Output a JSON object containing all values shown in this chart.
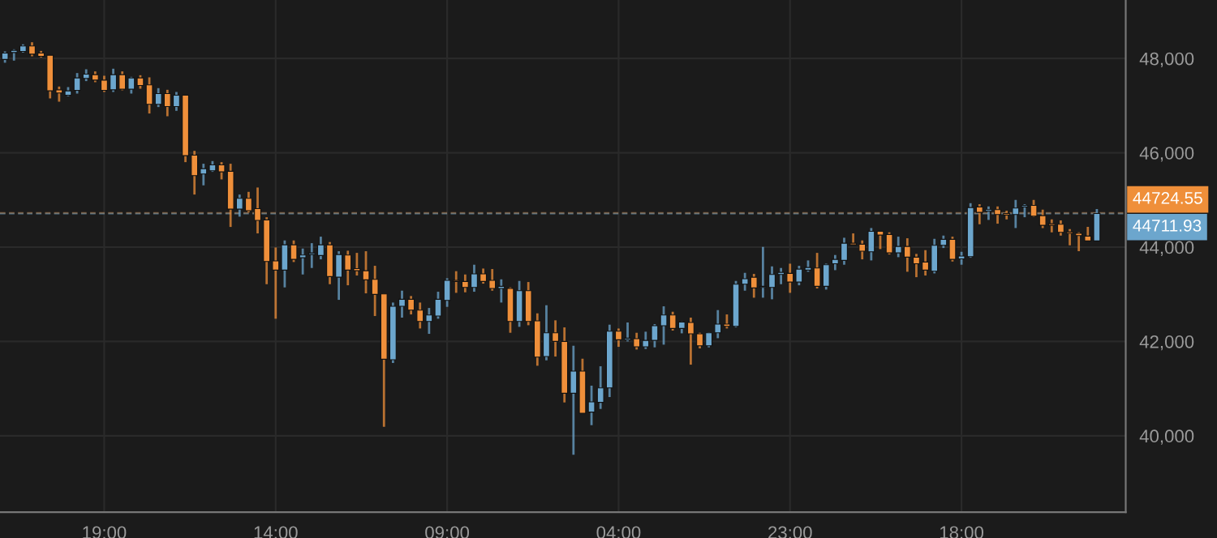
{
  "chart_data": {
    "type": "candlestick",
    "categories": [
      null,
      null,
      null,
      null,
      null,
      null,
      null,
      null,
      null,
      null,
      null,
      "19:00",
      null,
      null,
      null,
      null,
      null,
      null,
      null,
      null,
      null,
      null,
      null,
      null,
      null,
      null,
      null,
      null,
      null,
      null,
      "14:00",
      null,
      null,
      null,
      null,
      null,
      null,
      null,
      null,
      null,
      null,
      null,
      null,
      null,
      null,
      null,
      null,
      null,
      null,
      "09:00",
      null,
      null,
      null,
      null,
      null,
      null,
      null,
      null,
      null,
      null,
      null,
      null,
      null,
      null,
      null,
      null,
      null,
      null,
      "04:00",
      null,
      null,
      null,
      null,
      null,
      null,
      null,
      null,
      null,
      null,
      null,
      null,
      null,
      null,
      null,
      null,
      null,
      null,
      "23:00",
      null,
      null,
      null,
      null,
      null,
      null,
      null,
      null,
      null,
      null,
      null,
      null,
      null,
      null,
      null,
      null,
      null,
      null,
      "18:00",
      null,
      null,
      null,
      null,
      null,
      null,
      null,
      null,
      null,
      null,
      null,
      null,
      null,
      null,
      null
    ],
    "ohlc": [
      [
        47980,
        48150,
        47910,
        48115
      ],
      [
        48126,
        48195,
        47955,
        48172
      ],
      [
        48150,
        48300,
        48126,
        48264
      ],
      [
        48264,
        48344,
        48046,
        48092
      ],
      [
        48115,
        48160,
        48023,
        48046
      ],
      [
        48069,
        48069,
        47153,
        47313
      ],
      [
        47336,
        47405,
        47084,
        47268
      ],
      [
        47222,
        47393,
        47199,
        47313
      ],
      [
        47325,
        47691,
        47256,
        47588
      ],
      [
        47577,
        47771,
        47520,
        47668
      ],
      [
        47657,
        47726,
        47497,
        47542
      ],
      [
        47542,
        47634,
        47290,
        47325
      ],
      [
        47336,
        47783,
        47290,
        47657
      ],
      [
        47657,
        47726,
        47325,
        47348
      ],
      [
        47348,
        47611,
        47256,
        47588
      ],
      [
        47588,
        47645,
        47359,
        47428
      ],
      [
        47440,
        47600,
        46833,
        47027
      ],
      [
        47027,
        47371,
        46970,
        47256
      ],
      [
        47256,
        47336,
        46775,
        46981
      ],
      [
        46981,
        47290,
        46890,
        47222
      ],
      [
        47222,
        47222,
        45802,
        45940
      ],
      [
        45951,
        46042,
        45115,
        45516
      ],
      [
        45551,
        45768,
        45310,
        45665
      ],
      [
        45619,
        45825,
        45596,
        45745
      ],
      [
        45745,
        45802,
        45436,
        45596
      ],
      [
        45608,
        45768,
        44428,
        44806
      ],
      [
        44806,
        45115,
        44646,
        45035
      ],
      [
        45035,
        45172,
        44737,
        44772
      ],
      [
        44817,
        45264,
        44291,
        44566
      ],
      [
        44577,
        44634,
        43214,
        43695
      ],
      [
        43707,
        43993,
        42482,
        43512
      ],
      [
        43512,
        44142,
        43146,
        44050
      ],
      [
        44050,
        44142,
        43684,
        43741
      ],
      [
        43775,
        43970,
        43420,
        43833
      ],
      [
        43844,
        44084,
        43558,
        43878
      ],
      [
        43821,
        44222,
        43741,
        44050
      ],
      [
        44050,
        44108,
        43214,
        43375
      ],
      [
        43363,
        43913,
        42882,
        43844
      ],
      [
        43833,
        43924,
        43191,
        43512
      ],
      [
        43546,
        43878,
        43398,
        43500
      ],
      [
        43500,
        43913,
        43020,
        43306
      ],
      [
        43317,
        43604,
        42539,
        42997
      ],
      [
        43008,
        43008,
        40192,
        41623
      ],
      [
        41611,
        42825,
        41543,
        42745
      ],
      [
        42745,
        43077,
        42505,
        42894
      ],
      [
        42894,
        42963,
        42573,
        42665
      ],
      [
        42665,
        42825,
        42275,
        42424
      ],
      [
        42424,
        42710,
        42161,
        42562
      ],
      [
        42539,
        43054,
        42482,
        42894
      ],
      [
        42871,
        43340,
        42734,
        43295
      ],
      [
        43295,
        43490,
        43031,
        43272
      ],
      [
        43272,
        43420,
        43042,
        43146
      ],
      [
        43146,
        43627,
        43054,
        43432
      ],
      [
        43432,
        43546,
        43226,
        43272
      ],
      [
        43295,
        43535,
        43077,
        43123
      ],
      [
        43123,
        43317,
        42825,
        43169
      ],
      [
        43123,
        43146,
        42184,
        42424
      ],
      [
        42424,
        43283,
        42310,
        43077
      ],
      [
        43077,
        43260,
        42344,
        42424
      ],
      [
        42436,
        42596,
        41485,
        41669
      ],
      [
        41680,
        42768,
        41600,
        42184
      ],
      [
        42184,
        42448,
        41680,
        42001
      ],
      [
        42001,
        42298,
        40707,
        40901
      ],
      [
        40901,
        41909,
        39596,
        41371
      ],
      [
        41371,
        41634,
        40478,
        40478
      ],
      [
        40501,
        41062,
        40226,
        40718
      ],
      [
        40707,
        41474,
        40569,
        41016
      ],
      [
        41016,
        42356,
        40821,
        42218
      ],
      [
        42218,
        42275,
        41886,
        42035
      ],
      [
        42035,
        42402,
        42001,
        42069
      ],
      [
        42058,
        42184,
        41829,
        41886
      ],
      [
        41886,
        42207,
        41840,
        42023
      ],
      [
        42023,
        42367,
        41875,
        42333
      ],
      [
        42333,
        42745,
        41932,
        42562
      ],
      [
        42562,
        42630,
        42230,
        42275
      ],
      [
        42275,
        42424,
        42172,
        42413
      ],
      [
        42402,
        42505,
        41508,
        42161
      ],
      [
        42161,
        42184,
        41852,
        41909
      ],
      [
        41909,
        42195,
        41875,
        42184
      ],
      [
        42184,
        42665,
        42069,
        42367
      ],
      [
        42367,
        42573,
        42275,
        42321
      ],
      [
        42321,
        43283,
        42298,
        43214
      ],
      [
        43214,
        43455,
        43077,
        43329
      ],
      [
        43363,
        43432,
        42928,
        43134
      ],
      [
        43146,
        44005,
        42928,
        43169
      ],
      [
        43146,
        43592,
        42894,
        43420
      ],
      [
        43420,
        43558,
        43214,
        43466
      ],
      [
        43443,
        43649,
        43031,
        43260
      ],
      [
        43260,
        43604,
        43191,
        43535
      ],
      [
        43512,
        43718,
        43478,
        43569
      ],
      [
        43558,
        43878,
        43123,
        43169
      ],
      [
        43169,
        43649,
        43100,
        43627
      ],
      [
        43649,
        43833,
        43512,
        43741
      ],
      [
        43718,
        44199,
        43627,
        44084
      ],
      [
        44084,
        44291,
        44050,
        44050
      ],
      [
        44062,
        44142,
        43741,
        43913
      ],
      [
        43901,
        44405,
        43718,
        44336
      ],
      [
        44336,
        44336,
        43959,
        44256
      ],
      [
        44268,
        44314,
        43844,
        43878
      ],
      [
        43878,
        44222,
        43787,
        44016
      ],
      [
        44016,
        44188,
        43478,
        43787
      ],
      [
        43787,
        43856,
        43363,
        43649
      ],
      [
        43684,
        43936,
        43398,
        43512
      ],
      [
        43489,
        44176,
        43443,
        44039
      ],
      [
        44039,
        44245,
        43981,
        44165
      ],
      [
        44165,
        44222,
        43695,
        43741
      ],
      [
        43752,
        43901,
        43627,
        43810
      ],
      [
        43798,
        44932,
        43775,
        44840
      ],
      [
        44852,
        44909,
        44485,
        44737
      ],
      [
        44760,
        44863,
        44577,
        44795
      ],
      [
        44795,
        44863,
        44497,
        44691
      ],
      [
        44714,
        44772,
        44588,
        44680
      ],
      [
        44691,
        45001,
        44405,
        44829
      ],
      [
        44852,
        44909,
        44634,
        44886
      ],
      [
        44886,
        45001,
        44646,
        44657
      ],
      [
        44668,
        44795,
        44405,
        44462
      ],
      [
        44497,
        44588,
        44314,
        44462
      ],
      [
        44485,
        44565,
        44245,
        44314
      ],
      [
        44325,
        44382,
        44039,
        44291
      ],
      [
        44291,
        44314,
        43913,
        44245
      ],
      [
        44234,
        44428,
        44131,
        44131
      ],
      [
        44131,
        44806,
        44131,
        44714
      ]
    ],
    "colors": [
      "#6ca6cd",
      "#6ca6cd",
      "#6ca6cd",
      "#ef8f3a",
      "#ef8f3a",
      "#ef8f3a",
      "#ef8f3a",
      "#6ca6cd",
      "#6ca6cd",
      "#6ca6cd",
      "#ef8f3a",
      "#ef8f3a",
      "#6ca6cd",
      "#ef8f3a",
      "#6ca6cd",
      "#ef8f3a",
      "#ef8f3a",
      "#6ca6cd",
      "#ef8f3a",
      "#6ca6cd",
      "#ef8f3a",
      "#ef8f3a",
      "#6ca6cd",
      "#6ca6cd",
      "#ef8f3a",
      "#ef8f3a",
      "#6ca6cd",
      "#ef8f3a",
      "#ef8f3a",
      "#ef8f3a",
      "#ef8f3a",
      "#6ca6cd",
      "#ef8f3a",
      "#6ca6cd",
      "#6ca6cd",
      "#6ca6cd",
      "#ef8f3a",
      "#6ca6cd",
      "#ef8f3a",
      "#ef8f3a",
      "#ef8f3a",
      "#ef8f3a",
      "#ef8f3a",
      "#6ca6cd",
      "#6ca6cd",
      "#ef8f3a",
      "#ef8f3a",
      "#6ca6cd",
      "#6ca6cd",
      "#6ca6cd",
      "#ef8f3a",
      "#ef8f3a",
      "#6ca6cd",
      "#ef8f3a",
      "#ef8f3a",
      "#6ca6cd",
      "#ef8f3a",
      "#6ca6cd",
      "#ef8f3a",
      "#ef8f3a",
      "#6ca6cd",
      "#ef8f3a",
      "#ef8f3a",
      "#6ca6cd",
      "#ef8f3a",
      "#6ca6cd",
      "#6ca6cd",
      "#6ca6cd",
      "#ef8f3a",
      "#6ca6cd",
      "#ef8f3a",
      "#6ca6cd",
      "#6ca6cd",
      "#6ca6cd",
      "#ef8f3a",
      "#6ca6cd",
      "#ef8f3a",
      "#ef8f3a",
      "#6ca6cd",
      "#6ca6cd",
      "#ef8f3a",
      "#6ca6cd",
      "#6ca6cd",
      "#ef8f3a",
      "#6ca6cd",
      "#6ca6cd",
      "#6ca6cd",
      "#ef8f3a",
      "#6ca6cd",
      "#6ca6cd",
      "#ef8f3a",
      "#6ca6cd",
      "#6ca6cd",
      "#6ca6cd",
      "#ef8f3a",
      "#ef8f3a",
      "#6ca6cd",
      "#ef8f3a",
      "#ef8f3a",
      "#6ca6cd",
      "#ef8f3a",
      "#ef8f3a",
      "#ef8f3a",
      "#6ca6cd",
      "#6ca6cd",
      "#ef8f3a",
      "#6ca6cd",
      "#6ca6cd",
      "#ef8f3a",
      "#6ca6cd",
      "#ef8f3a",
      "#ef8f3a",
      "#6ca6cd",
      "#6ca6cd",
      "#ef8f3a",
      "#ef8f3a",
      "#ef8f3a",
      "#ef8f3a",
      "#ef8f3a",
      "#ef8f3a",
      "#ef8f3a",
      "#6ca6cd"
    ],
    "ylim": [
      38380,
      49240
    ],
    "yticks": [
      {
        "value": 40000,
        "label": "40,000"
      },
      {
        "value": 42000,
        "label": "42,000"
      },
      {
        "value": 44000,
        "label": "44,000"
      },
      {
        "value": 46000,
        "label": "46,000"
      },
      {
        "value": 48000,
        "label": "48,000"
      }
    ],
    "ref_lines": [
      {
        "axis": "y",
        "value": 44724.55,
        "label": "44724.55",
        "color": "#ef8f3a",
        "line_style": "dashed"
      },
      {
        "axis": "y",
        "value": 44711.93,
        "label": "44711.93",
        "color": "#6ca6cd",
        "line_style": "dashed"
      }
    ],
    "grid": true
  }
}
